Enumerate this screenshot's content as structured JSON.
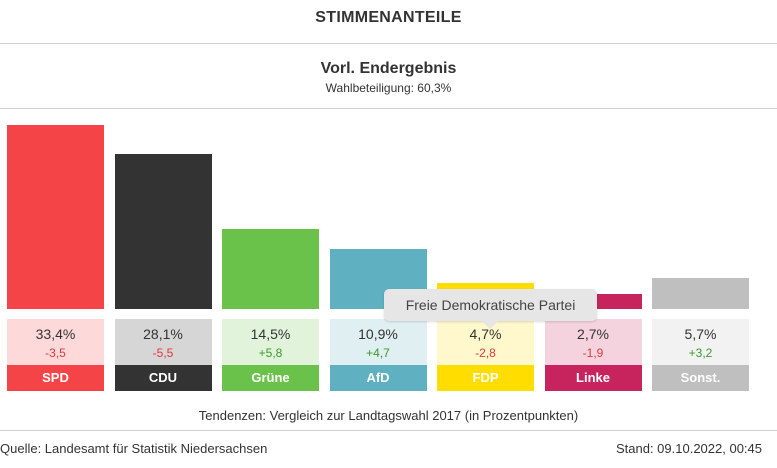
{
  "header": {
    "title": "STIMMENANTEILE"
  },
  "result": {
    "title": "Vorl. Endergebnis",
    "turnout": "Wahlbeteiligung: 60,3%"
  },
  "chart_data": {
    "type": "bar",
    "categories": [
      "SPD",
      "CDU",
      "Grüne",
      "AfD",
      "FDP",
      "Linke",
      "Sonst."
    ],
    "values": [
      33.4,
      28.1,
      14.5,
      10.9,
      4.7,
      2.7,
      5.7
    ],
    "value_labels": [
      "33,4%",
      "28,1%",
      "14,5%",
      "10,9%",
      "4,7%",
      "2,7%",
      "5,7%"
    ],
    "changes": [
      -3.5,
      -5.5,
      5.8,
      4.7,
      -2.8,
      -1.9,
      3.2
    ],
    "change_labels": [
      "-3,5",
      "-5,5",
      "+5,8",
      "+4,7",
      "-2,8",
      "-1,9",
      "+3,2"
    ],
    "colors": [
      "#f44447",
      "#333333",
      "#6ac24a",
      "#5fb0c0",
      "#ffdd00",
      "#c7245e",
      "#bfbfbf"
    ],
    "box_colors": [
      "#fdd9da",
      "#d6d6d6",
      "#e1f3db",
      "#dfeff2",
      "#fff8cc",
      "#f4d3df",
      "#f2f2f2"
    ],
    "positive_color": "#3a9a2a",
    "negative_color": "#e0393c",
    "ylim": [
      0,
      34
    ],
    "title": "",
    "xlabel": "",
    "ylabel": ""
  },
  "tooltip": {
    "text": "Freie Demokratische Partei"
  },
  "trend_note": "Tendenzen: Vergleich zur Landtagswahl 2017 (in Prozentpunkten)",
  "footer": {
    "source": "Quelle: Landesamt für Statistik Niedersachsen",
    "stand": "Stand: 09.10.2022, 00:45"
  }
}
